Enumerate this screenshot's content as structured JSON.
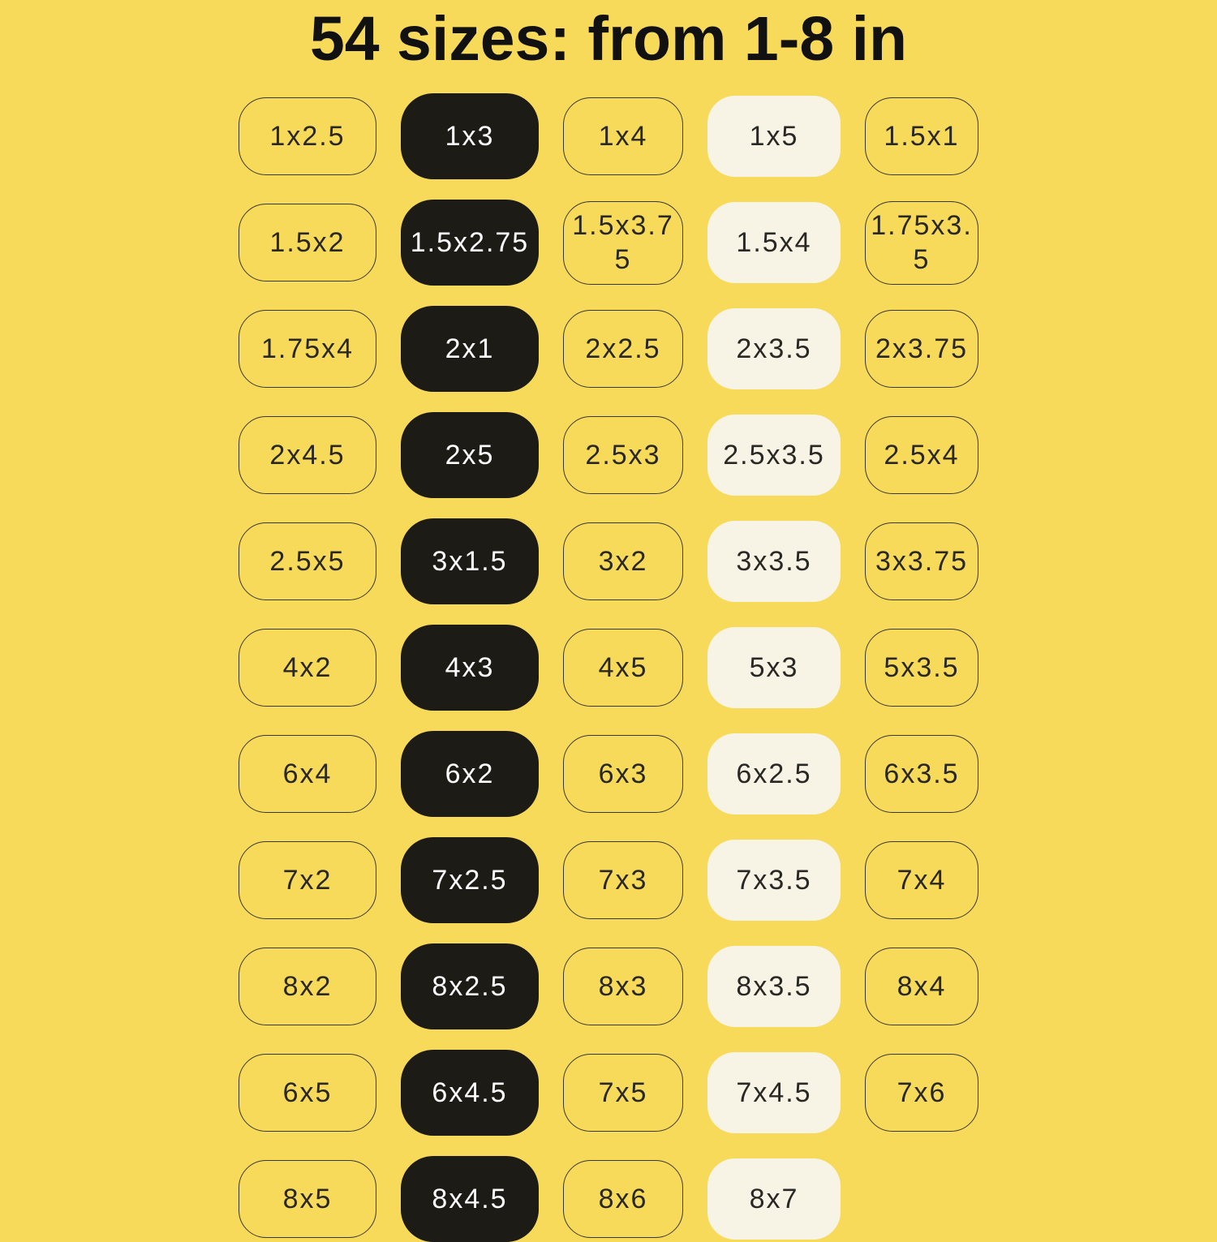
{
  "title": "54 sizes: from 1-8 in",
  "colors": {
    "background": "#F8DA5B",
    "black_pill": "#1D1B15",
    "cream_pill": "#F7F4E5",
    "outline": "#3A382F",
    "text_dark": "#2A2824",
    "text_light": "#FFFFFF",
    "title": "#111111"
  },
  "grid": {
    "column_variants": [
      "outline",
      "black",
      "outline",
      "cream",
      "outline"
    ],
    "rows": [
      [
        "1x2.5",
        "1x3",
        "1x4",
        "1x5",
        "1.5x1"
      ],
      [
        "1.5x2",
        "1.5x2.75",
        "1.5x3.75",
        "1.5x4",
        "1.75x3.5"
      ],
      [
        "1.75x4",
        "2x1",
        "2x2.5",
        "2x3.5",
        "2x3.75"
      ],
      [
        "2x4.5",
        "2x5",
        "2.5x3",
        "2.5x3.5",
        "2.5x4"
      ],
      [
        "2.5x5",
        "3x1.5",
        "3x2",
        "3x3.5",
        "3x3.75"
      ],
      [
        "4x2",
        "4x3",
        "4x5",
        "5x3",
        "5x3.5"
      ],
      [
        "6x4",
        "6x2",
        "6x3",
        "6x2.5",
        "6x3.5"
      ],
      [
        "7x2",
        "7x2.5",
        "7x3",
        "7x3.5",
        "7x4"
      ],
      [
        "8x2",
        "8x2.5",
        "8x3",
        "8x3.5",
        "8x4"
      ],
      [
        "6x5",
        "6x4.5",
        "7x5",
        "7x4.5",
        "7x6"
      ],
      [
        "8x5",
        "8x4.5",
        "8x6",
        "8x7",
        null
      ]
    ]
  }
}
